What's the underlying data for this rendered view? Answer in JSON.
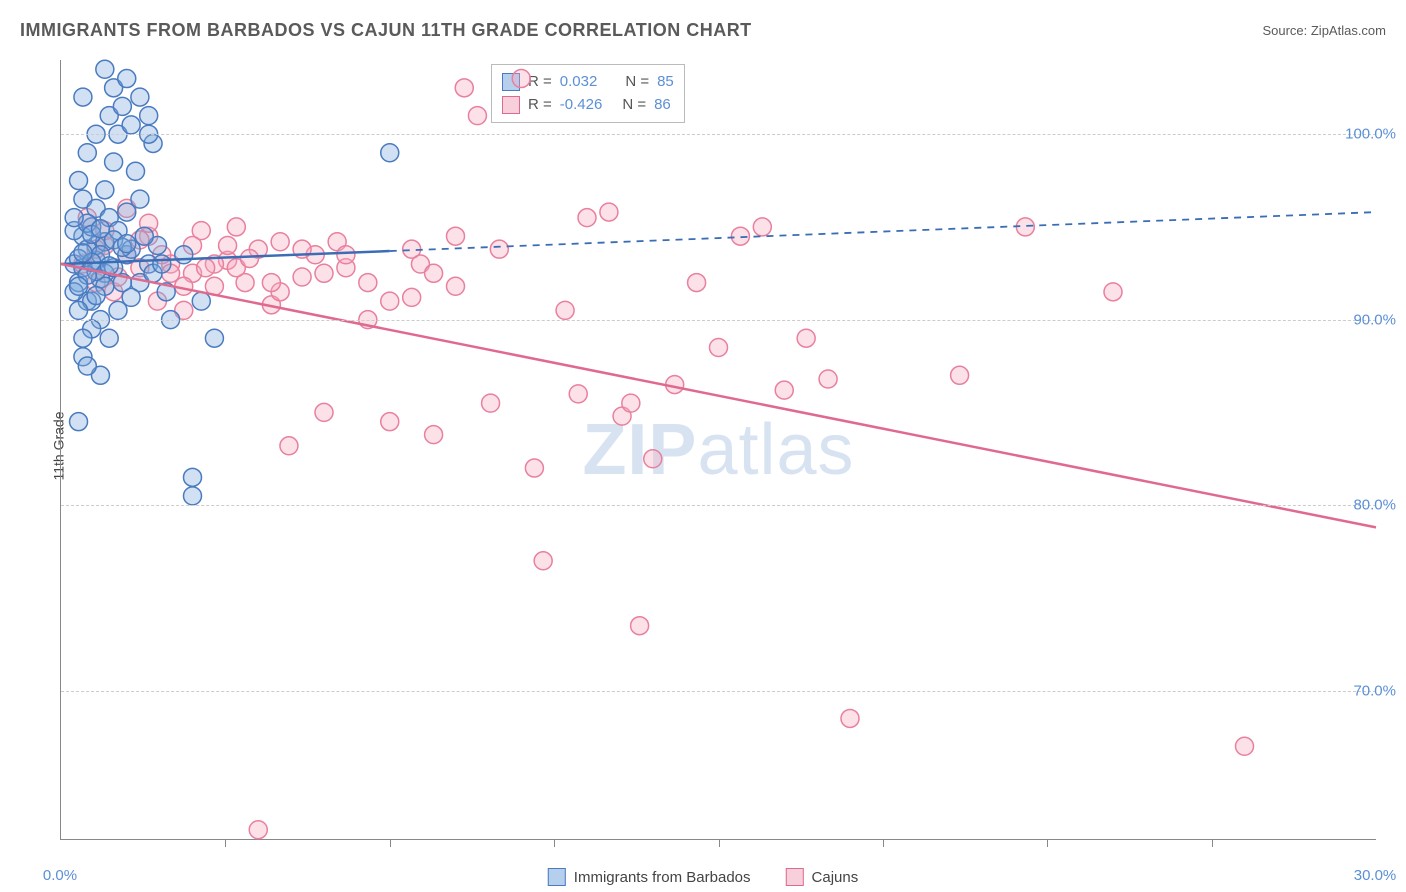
{
  "title": "IMMIGRANTS FROM BARBADOS VS CAJUN 11TH GRADE CORRELATION CHART",
  "source_label": "Source: ",
  "source_name": "ZipAtlas.com",
  "ylabel": "11th Grade",
  "watermark_bold": "ZIP",
  "watermark_rest": "atlas",
  "chart": {
    "type": "scatter",
    "xlim": [
      0,
      30
    ],
    "ylim": [
      62,
      104
    ],
    "x_ticks_display": [
      "0.0%",
      "30.0%"
    ],
    "x_tick_minor_positions": [
      3.75,
      7.5,
      11.25,
      15,
      18.75,
      22.5,
      26.25
    ],
    "y_grid": [
      70,
      80,
      90,
      100
    ],
    "y_ticks_display": [
      "70.0%",
      "80.0%",
      "90.0%",
      "100.0%"
    ],
    "marker_radius": 9,
    "background_color": "#ffffff",
    "grid_color": "#cccccc",
    "axis_color": "#888888",
    "tick_label_color": "#5b8fd6",
    "series": [
      {
        "key": "barbados",
        "label": "Immigrants from Barbados",
        "color_fill": "#7aa8dc",
        "color_stroke": "#4a7bc0",
        "R": "0.032",
        "N": "85",
        "trend": {
          "x1": 0,
          "y1": 93.0,
          "x2_solid": 7.5,
          "y2_solid": 93.7,
          "x2": 30,
          "y2": 95.8
        },
        "points": [
          [
            0.3,
            93.0
          ],
          [
            0.4,
            92.0
          ],
          [
            0.5,
            94.5
          ],
          [
            0.6,
            91.0
          ],
          [
            0.7,
            95.0
          ],
          [
            0.5,
            96.5
          ],
          [
            0.8,
            93.2
          ],
          [
            0.9,
            90.0
          ],
          [
            0.4,
            97.5
          ],
          [
            1.0,
            92.5
          ],
          [
            1.1,
            101.0
          ],
          [
            1.2,
            102.5
          ],
          [
            0.6,
            99.0
          ],
          [
            1.4,
            101.5
          ],
          [
            1.5,
            103.0
          ],
          [
            1.3,
            100.0
          ],
          [
            0.7,
            89.5
          ],
          [
            0.5,
            88.0
          ],
          [
            0.8,
            94.0
          ],
          [
            1.6,
            100.5
          ],
          [
            1.7,
            98.0
          ],
          [
            1.8,
            102.0
          ],
          [
            2.0,
            101.0
          ],
          [
            2.1,
            99.5
          ],
          [
            0.9,
            87.0
          ],
          [
            0.4,
            84.5
          ],
          [
            0.6,
            93.8
          ],
          [
            1.0,
            94.2
          ],
          [
            1.2,
            92.8
          ],
          [
            1.5,
            93.5
          ],
          [
            1.8,
            92.0
          ],
          [
            2.0,
            93.0
          ],
          [
            2.2,
            94.0
          ],
          [
            2.4,
            91.5
          ],
          [
            2.5,
            90.0
          ],
          [
            0.3,
            91.5
          ],
          [
            0.5,
            92.8
          ],
          [
            0.7,
            91.0
          ],
          [
            2.8,
            93.5
          ],
          [
            3.0,
            81.5
          ],
          [
            3.0,
            80.5
          ],
          [
            3.2,
            91.0
          ],
          [
            3.5,
            89.0
          ],
          [
            0.6,
            87.5
          ],
          [
            0.8,
            96.0
          ],
          [
            1.0,
            97.0
          ],
          [
            1.1,
            95.5
          ],
          [
            1.3,
            94.8
          ],
          [
            0.4,
            90.5
          ],
          [
            0.9,
            93.5
          ],
          [
            1.4,
            92.0
          ],
          [
            1.6,
            93.8
          ],
          [
            1.9,
            94.5
          ],
          [
            2.1,
            92.5
          ],
          [
            2.3,
            93.0
          ],
          [
            7.5,
            99.0
          ],
          [
            0.5,
            102.0
          ],
          [
            0.8,
            100.0
          ],
          [
            1.0,
            103.5
          ],
          [
            1.2,
            98.5
          ],
          [
            2.0,
            100.0
          ],
          [
            0.3,
            94.8
          ],
          [
            0.6,
            95.2
          ],
          [
            0.9,
            92.2
          ],
          [
            1.1,
            89.0
          ],
          [
            1.3,
            90.5
          ],
          [
            0.4,
            93.3
          ],
          [
            0.7,
            94.6
          ],
          [
            1.0,
            91.8
          ],
          [
            1.5,
            95.8
          ],
          [
            1.8,
            96.5
          ],
          [
            0.5,
            89.0
          ],
          [
            0.8,
            92.6
          ],
          [
            1.2,
            94.3
          ],
          [
            1.6,
            91.2
          ],
          [
            0.3,
            95.5
          ],
          [
            0.6,
            92.4
          ],
          [
            0.9,
            94.9
          ],
          [
            1.4,
            93.9
          ],
          [
            0.4,
            91.8
          ],
          [
            0.7,
            93.1
          ],
          [
            1.1,
            92.9
          ],
          [
            1.5,
            94.1
          ],
          [
            0.5,
            93.6
          ],
          [
            0.8,
            91.3
          ]
        ]
      },
      {
        "key": "cajuns",
        "label": "Cajuns",
        "color_fill": "#f5a8bd",
        "color_stroke": "#e8809e",
        "R": "-0.426",
        "N": "86",
        "trend": {
          "x1": 0,
          "y1": 93.0,
          "x2_solid": 30,
          "y2_solid": 78.8,
          "x2": 30,
          "y2": 78.8
        },
        "points": [
          [
            0.5,
            93.0
          ],
          [
            0.8,
            92.0
          ],
          [
            1.0,
            94.0
          ],
          [
            1.2,
            91.5
          ],
          [
            1.5,
            93.5
          ],
          [
            1.8,
            92.8
          ],
          [
            2.0,
            94.5
          ],
          [
            2.2,
            91.0
          ],
          [
            2.5,
            93.0
          ],
          [
            2.8,
            90.5
          ],
          [
            3.0,
            92.5
          ],
          [
            3.2,
            94.8
          ],
          [
            3.5,
            91.8
          ],
          [
            3.8,
            93.2
          ],
          [
            4.0,
            95.0
          ],
          [
            4.2,
            92.0
          ],
          [
            4.5,
            93.8
          ],
          [
            4.8,
            90.8
          ],
          [
            5.0,
            91.5
          ],
          [
            5.2,
            83.2
          ],
          [
            5.5,
            92.3
          ],
          [
            5.8,
            93.5
          ],
          [
            6.0,
            85.0
          ],
          [
            6.3,
            94.2
          ],
          [
            6.5,
            92.8
          ],
          [
            7.0,
            90.0
          ],
          [
            7.5,
            84.5
          ],
          [
            8.0,
            91.2
          ],
          [
            8.2,
            93.0
          ],
          [
            8.5,
            83.8
          ],
          [
            9.0,
            94.5
          ],
          [
            9.2,
            102.5
          ],
          [
            9.5,
            101.0
          ],
          [
            9.8,
            85.5
          ],
          [
            10.0,
            93.8
          ],
          [
            10.5,
            103.0
          ],
          [
            10.8,
            82.0
          ],
          [
            11.0,
            77.0
          ],
          [
            11.5,
            90.5
          ],
          [
            11.8,
            86.0
          ],
          [
            12.0,
            95.5
          ],
          [
            12.5,
            95.8
          ],
          [
            12.8,
            84.8
          ],
          [
            13.0,
            85.5
          ],
          [
            13.2,
            73.5
          ],
          [
            13.5,
            82.5
          ],
          [
            14.0,
            86.5
          ],
          [
            14.5,
            92.0
          ],
          [
            15.0,
            88.5
          ],
          [
            15.5,
            94.5
          ],
          [
            16.0,
            95.0
          ],
          [
            16.5,
            86.2
          ],
          [
            17.0,
            89.0
          ],
          [
            17.5,
            86.8
          ],
          [
            18.0,
            68.5
          ],
          [
            20.5,
            87.0
          ],
          [
            22.0,
            95.0
          ],
          [
            24.0,
            91.5
          ],
          [
            27.0,
            67.0
          ],
          [
            0.6,
            95.5
          ],
          [
            1.0,
            94.8
          ],
          [
            1.5,
            96.0
          ],
          [
            2.0,
            95.2
          ],
          [
            2.5,
            92.5
          ],
          [
            3.0,
            94.0
          ],
          [
            3.5,
            93.0
          ],
          [
            4.0,
            92.8
          ],
          [
            4.5,
            62.5
          ],
          [
            5.0,
            94.2
          ],
          [
            5.5,
            93.8
          ],
          [
            6.0,
            92.5
          ],
          [
            6.5,
            93.5
          ],
          [
            7.0,
            92.0
          ],
          [
            7.5,
            91.0
          ],
          [
            8.0,
            93.8
          ],
          [
            8.5,
            92.5
          ],
          [
            9.0,
            91.8
          ],
          [
            0.8,
            93.8
          ],
          [
            1.3,
            92.3
          ],
          [
            1.8,
            94.3
          ],
          [
            2.3,
            93.5
          ],
          [
            2.8,
            91.8
          ],
          [
            3.3,
            92.8
          ],
          [
            3.8,
            94.0
          ],
          [
            4.3,
            93.3
          ],
          [
            4.8,
            92.0
          ]
        ]
      }
    ]
  },
  "legend_top": {
    "r_label": "R =",
    "n_label": "N ="
  },
  "legend_bottom": [
    {
      "swatch": "blue",
      "label": "Immigrants from Barbados"
    },
    {
      "swatch": "pink",
      "label": "Cajuns"
    }
  ]
}
